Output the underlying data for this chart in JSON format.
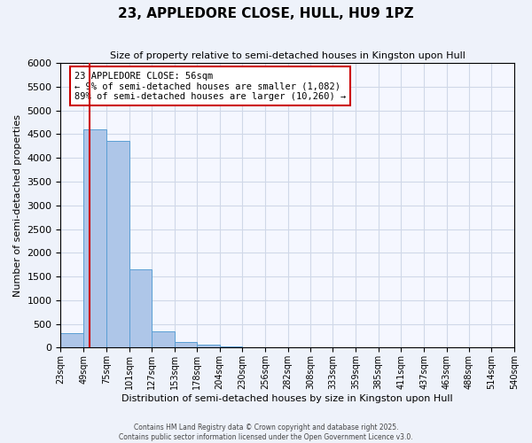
{
  "title": "23, APPLEDORE CLOSE, HULL, HU9 1PZ",
  "subtitle": "Size of property relative to semi-detached houses in Kingston upon Hull",
  "xlabel": "Distribution of semi-detached houses by size in Kingston upon Hull",
  "ylabel": "Number of semi-detached properties",
  "bar_values": [
    300,
    4600,
    4350,
    1650,
    350,
    120,
    60,
    30,
    10,
    5,
    2,
    1,
    1,
    0,
    0,
    0,
    0,
    0,
    0,
    0
  ],
  "bin_labels": [
    "23sqm",
    "49sqm",
    "75sqm",
    "101sqm",
    "127sqm",
    "153sqm",
    "178sqm",
    "204sqm",
    "230sqm",
    "256sqm",
    "282sqm",
    "308sqm",
    "333sqm",
    "359sqm",
    "385sqm",
    "411sqm",
    "437sqm",
    "463sqm",
    "488sqm",
    "514sqm",
    "540sqm"
  ],
  "bin_edges": [
    23,
    49,
    75,
    101,
    127,
    153,
    178,
    204,
    230,
    256,
    282,
    308,
    333,
    359,
    385,
    411,
    437,
    463,
    488,
    514,
    540
  ],
  "bar_color": "#aec6e8",
  "bar_edge_color": "#5a9fd4",
  "vline_x": 56,
  "vline_color": "#cc0000",
  "ylim": [
    0,
    6000
  ],
  "yticks": [
    0,
    500,
    1000,
    1500,
    2000,
    2500,
    3000,
    3500,
    4000,
    4500,
    5000,
    5500,
    6000
  ],
  "annotation_title": "23 APPLEDORE CLOSE: 56sqm",
  "annotation_line1": "← 9% of semi-detached houses are smaller (1,082)",
  "annotation_line2": "89% of semi-detached houses are larger (10,260) →",
  "annotation_box_color": "#ffffff",
  "annotation_box_edge": "#cc0000",
  "footer1": "Contains HM Land Registry data © Crown copyright and database right 2025.",
  "footer2": "Contains public sector information licensed under the Open Government Licence v3.0.",
  "bg_color": "#eef2fa",
  "plot_bg_color": "#f5f7ff",
  "grid_color": "#d0d8e8"
}
